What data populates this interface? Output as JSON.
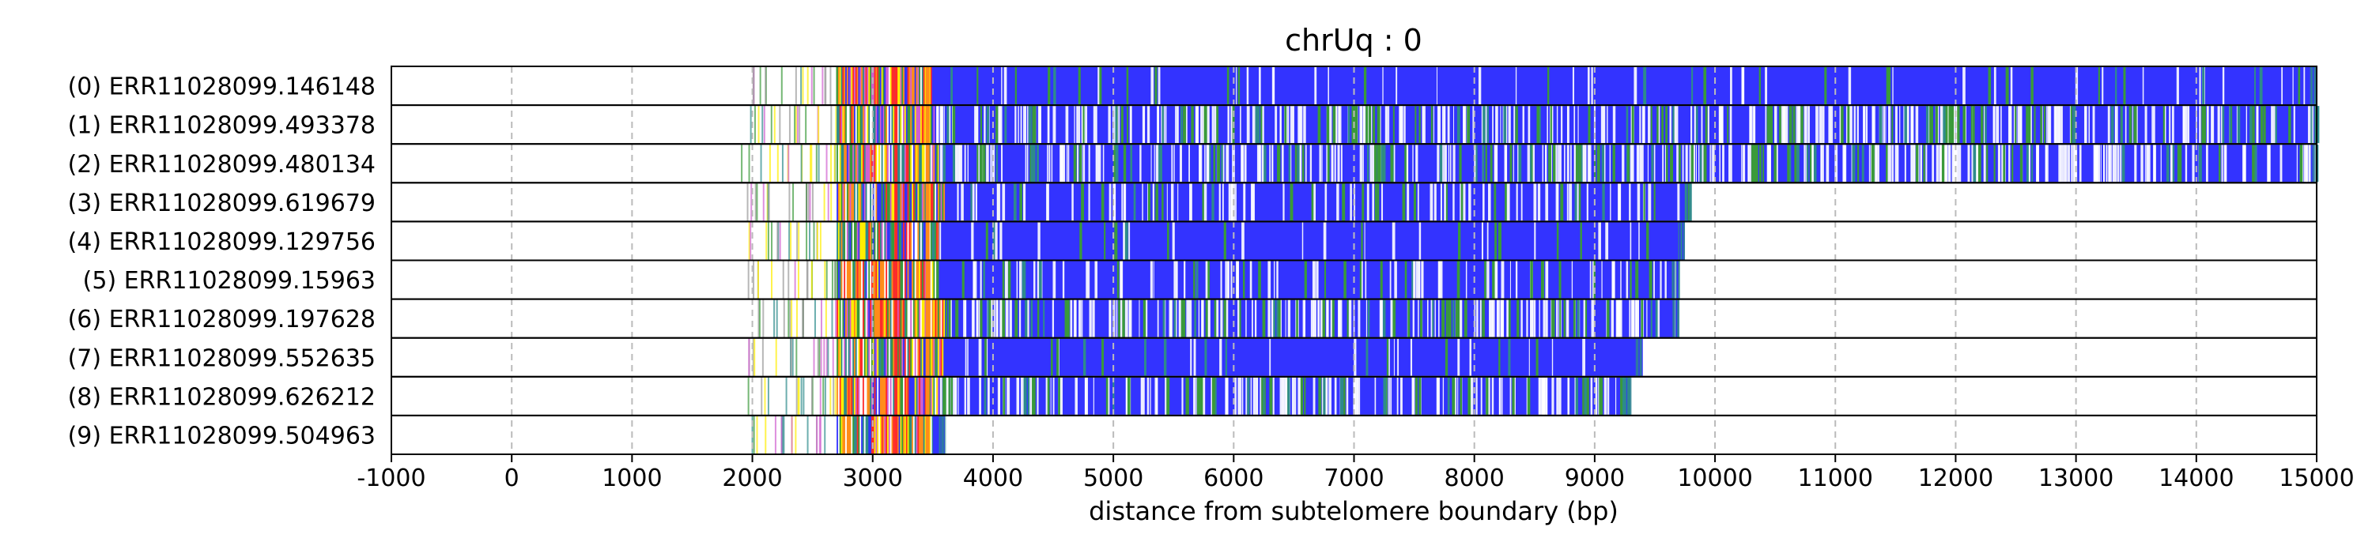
{
  "chart_data": {
    "type": "heatmap",
    "title": "chrUq : 0",
    "xlabel": "distance from subtelomere boundary (bp)",
    "ylabel": "",
    "xlim": [
      -1000,
      15000
    ],
    "xticks": [
      -1000,
      0,
      1000,
      2000,
      3000,
      4000,
      5000,
      6000,
      7000,
      8000,
      9000,
      10000,
      11000,
      12000,
      13000,
      14000,
      15000
    ],
    "xtick_labels": [
      "-1000",
      "0",
      "1000",
      "2000",
      "3000",
      "4000",
      "5000",
      "6000",
      "7000",
      "8000",
      "9000",
      "10000",
      "11000",
      "12000",
      "13000",
      "14000",
      "15000"
    ],
    "grid": "vertical dashed",
    "colors": {
      "repeat": "#3333ff",
      "variant_green": "#3a9a3a",
      "variant_teal": "#2e8b8b",
      "gap": "#ffffff",
      "yellow": "#ffee00",
      "orange": "#ff8c1a",
      "red": "#ff2a2a",
      "magenta": "#d060d0",
      "grid": "#bbbbbb"
    },
    "reads": [
      {
        "label": "(0) ERR11028099.146148",
        "start": 1950,
        "end": 15000,
        "blue_start": 3500,
        "density": "low"
      },
      {
        "label": "(1) ERR11028099.493378",
        "start": 1950,
        "end": 15000,
        "blue_start": 3550,
        "density": "high"
      },
      {
        "label": "(2) ERR11028099.480134",
        "start": 1900,
        "end": 15000,
        "blue_start": 3550,
        "density": "high"
      },
      {
        "label": "(3) ERR11028099.619679",
        "start": 1950,
        "end": 9800,
        "blue_start": 3600,
        "density": "medium"
      },
      {
        "label": "(4) ERR11028099.129756",
        "start": 1950,
        "end": 9750,
        "blue_start": 3550,
        "density": "low"
      },
      {
        "label": "(5) ERR11028099.15963",
        "start": 1950,
        "end": 9700,
        "blue_start": 3550,
        "density": "medium"
      },
      {
        "label": "(6) ERR11028099.197628",
        "start": 1950,
        "end": 9700,
        "blue_start": 3600,
        "density": "high"
      },
      {
        "label": "(7) ERR11028099.552635",
        "start": 1950,
        "end": 9400,
        "blue_start": 3600,
        "density": "low"
      },
      {
        "label": "(8) ERR11028099.626212",
        "start": 1950,
        "end": 9300,
        "blue_start": 3550,
        "density": "high"
      },
      {
        "label": "(9) ERR11028099.504963",
        "start": 1950,
        "end": 3600,
        "blue_start": 3500,
        "density": "none"
      }
    ]
  }
}
